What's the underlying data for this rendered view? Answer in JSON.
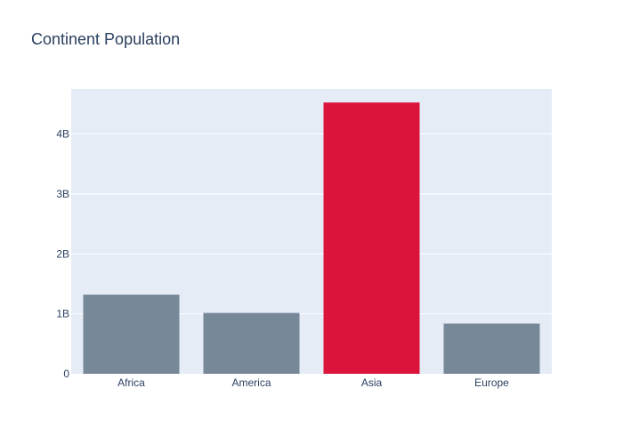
{
  "chart_data": {
    "type": "bar",
    "title": "Continent Population",
    "xlabel": "",
    "ylabel": "",
    "categories": [
      "Africa",
      "America",
      "Asia",
      "Europe"
    ],
    "values": [
      1320000000,
      1015000000,
      4525000000,
      838000000
    ],
    "ylim": [
      0,
      4750000000
    ],
    "yticks": [
      {
        "value": 0,
        "label": "0"
      },
      {
        "value": 1000000000,
        "label": "1B"
      },
      {
        "value": 2000000000,
        "label": "2B"
      },
      {
        "value": 3000000000,
        "label": "3B"
      },
      {
        "value": 4000000000,
        "label": "4B"
      }
    ],
    "bar_colors": [
      "#778899",
      "#778899",
      "#dc143c",
      "#778899"
    ],
    "highlighted_category": "Asia",
    "highlight_color": "#dc143c",
    "default_color": "#778899",
    "plot_background": "#e5ecf6",
    "grid": true,
    "grid_color": "#ffffff",
    "text_color": "#2a3f5f",
    "legend": "none"
  }
}
